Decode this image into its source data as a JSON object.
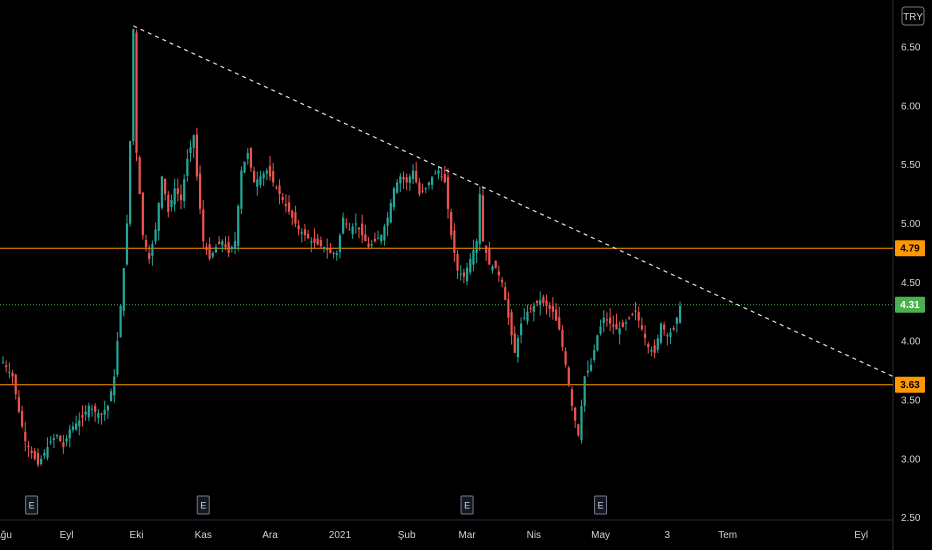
{
  "chart_data": {
    "type": "candlestick",
    "currency": "TRY",
    "y_ticks": [
      6.5,
      6.0,
      5.5,
      5.0,
      4.5,
      4.0,
      3.5,
      3.0,
      2.5
    ],
    "ylim": [
      2.48,
      6.9
    ],
    "x_ticks": [
      {
        "label": "Ağu",
        "i": 0
      },
      {
        "label": "Eyl",
        "i": 20
      },
      {
        "label": "Eki",
        "i": 42
      },
      {
        "label": "Kas",
        "i": 63
      },
      {
        "label": "Ara",
        "i": 84
      },
      {
        "label": "2021",
        "i": 106
      },
      {
        "label": "Şub",
        "i": 127
      },
      {
        "label": "Mar",
        "i": 146
      },
      {
        "label": "Nis",
        "i": 167
      },
      {
        "label": "May",
        "i": 188
      },
      {
        "label": "3",
        "i": 209
      },
      {
        "label": "Tem",
        "i": 228
      },
      {
        "label": "Eyl",
        "i": 270
      }
    ],
    "xlim_index": [
      0,
      280
    ],
    "event_markers": [
      {
        "label": "E",
        "i": 9
      },
      {
        "label": "E",
        "i": 63
      },
      {
        "label": "E",
        "i": 146
      },
      {
        "label": "E",
        "i": 188
      }
    ],
    "horizontal_lines": [
      {
        "value": 4.79,
        "label": "4.79",
        "color": "#ff9800"
      },
      {
        "value": 3.63,
        "label": "3.63",
        "color": "#ff9800"
      }
    ],
    "last_price": {
      "value": 4.31,
      "label": "4.31",
      "color": "#4caf50"
    },
    "trendline": {
      "from": {
        "i": 41,
        "price": 6.68
      },
      "to": {
        "i": 280,
        "price": 3.7
      }
    },
    "candle_close_path": [
      [
        0,
        3.82
      ],
      [
        3,
        3.7
      ],
      [
        5,
        3.4
      ],
      [
        7,
        3.15
      ],
      [
        9,
        3.05
      ],
      [
        11,
        2.95
      ],
      [
        13,
        3.05
      ],
      [
        15,
        3.15
      ],
      [
        17,
        3.2
      ],
      [
        19,
        3.1
      ],
      [
        21,
        3.25
      ],
      [
        23,
        3.3
      ],
      [
        25,
        3.35
      ],
      [
        27,
        3.45
      ],
      [
        29,
        3.4
      ],
      [
        31,
        3.38
      ],
      [
        33,
        3.45
      ],
      [
        35,
        3.7
      ],
      [
        36,
        4.0
      ],
      [
        37,
        4.3
      ],
      [
        38,
        4.62
      ],
      [
        39,
        5.0
      ],
      [
        40,
        5.7
      ],
      [
        41,
        6.65
      ],
      [
        42,
        5.6
      ],
      [
        44,
        4.9
      ],
      [
        46,
        4.7
      ],
      [
        48,
        4.95
      ],
      [
        50,
        5.4
      ],
      [
        52,
        5.1
      ],
      [
        54,
        5.3
      ],
      [
        56,
        5.2
      ],
      [
        58,
        5.55
      ],
      [
        60,
        5.75
      ],
      [
        61,
        5.4
      ],
      [
        63,
        4.85
      ],
      [
        65,
        4.7
      ],
      [
        67,
        4.8
      ],
      [
        69,
        4.85
      ],
      [
        71,
        4.75
      ],
      [
        73,
        4.85
      ],
      [
        75,
        5.45
      ],
      [
        77,
        5.6
      ],
      [
        79,
        5.35
      ],
      [
        81,
        5.4
      ],
      [
        83,
        5.45
      ],
      [
        85,
        5.35
      ],
      [
        87,
        5.25
      ],
      [
        89,
        5.15
      ],
      [
        91,
        5.05
      ],
      [
        93,
        4.95
      ],
      [
        95,
        4.9
      ],
      [
        97,
        4.85
      ],
      [
        99,
        4.82
      ],
      [
        101,
        4.8
      ],
      [
        103,
        4.75
      ],
      [
        105,
        4.75
      ],
      [
        107,
        5.05
      ],
      [
        109,
        4.95
      ],
      [
        111,
        5.0
      ],
      [
        113,
        4.9
      ],
      [
        115,
        4.8
      ],
      [
        117,
        4.85
      ],
      [
        119,
        4.9
      ],
      [
        121,
        5.05
      ],
      [
        123,
        5.3
      ],
      [
        125,
        5.4
      ],
      [
        127,
        5.35
      ],
      [
        129,
        5.45
      ],
      [
        131,
        5.25
      ],
      [
        133,
        5.3
      ],
      [
        135,
        5.4
      ],
      [
        137,
        5.45
      ],
      [
        139,
        5.35
      ],
      [
        141,
        4.9
      ],
      [
        143,
        4.6
      ],
      [
        145,
        4.55
      ],
      [
        147,
        4.7
      ],
      [
        149,
        4.85
      ],
      [
        150,
        5.25
      ],
      [
        151,
        4.85
      ],
      [
        153,
        4.65
      ],
      [
        155,
        4.62
      ],
      [
        157,
        4.5
      ],
      [
        159,
        4.2
      ],
      [
        161,
        3.9
      ],
      [
        163,
        4.15
      ],
      [
        165,
        4.25
      ],
      [
        167,
        4.3
      ],
      [
        169,
        4.35
      ],
      [
        171,
        4.3
      ],
      [
        173,
        4.25
      ],
      [
        175,
        4.1
      ],
      [
        177,
        3.8
      ],
      [
        179,
        3.45
      ],
      [
        181,
        3.2
      ],
      [
        183,
        3.7
      ],
      [
        185,
        3.8
      ],
      [
        187,
        4.05
      ],
      [
        189,
        4.2
      ],
      [
        191,
        4.15
      ],
      [
        193,
        4.1
      ],
      [
        195,
        4.12
      ],
      [
        197,
        4.2
      ],
      [
        199,
        4.25
      ],
      [
        201,
        4.1
      ],
      [
        203,
        3.95
      ],
      [
        205,
        3.9
      ],
      [
        207,
        4.15
      ],
      [
        209,
        4.05
      ],
      [
        211,
        4.1
      ],
      [
        213,
        4.3
      ]
    ]
  }
}
